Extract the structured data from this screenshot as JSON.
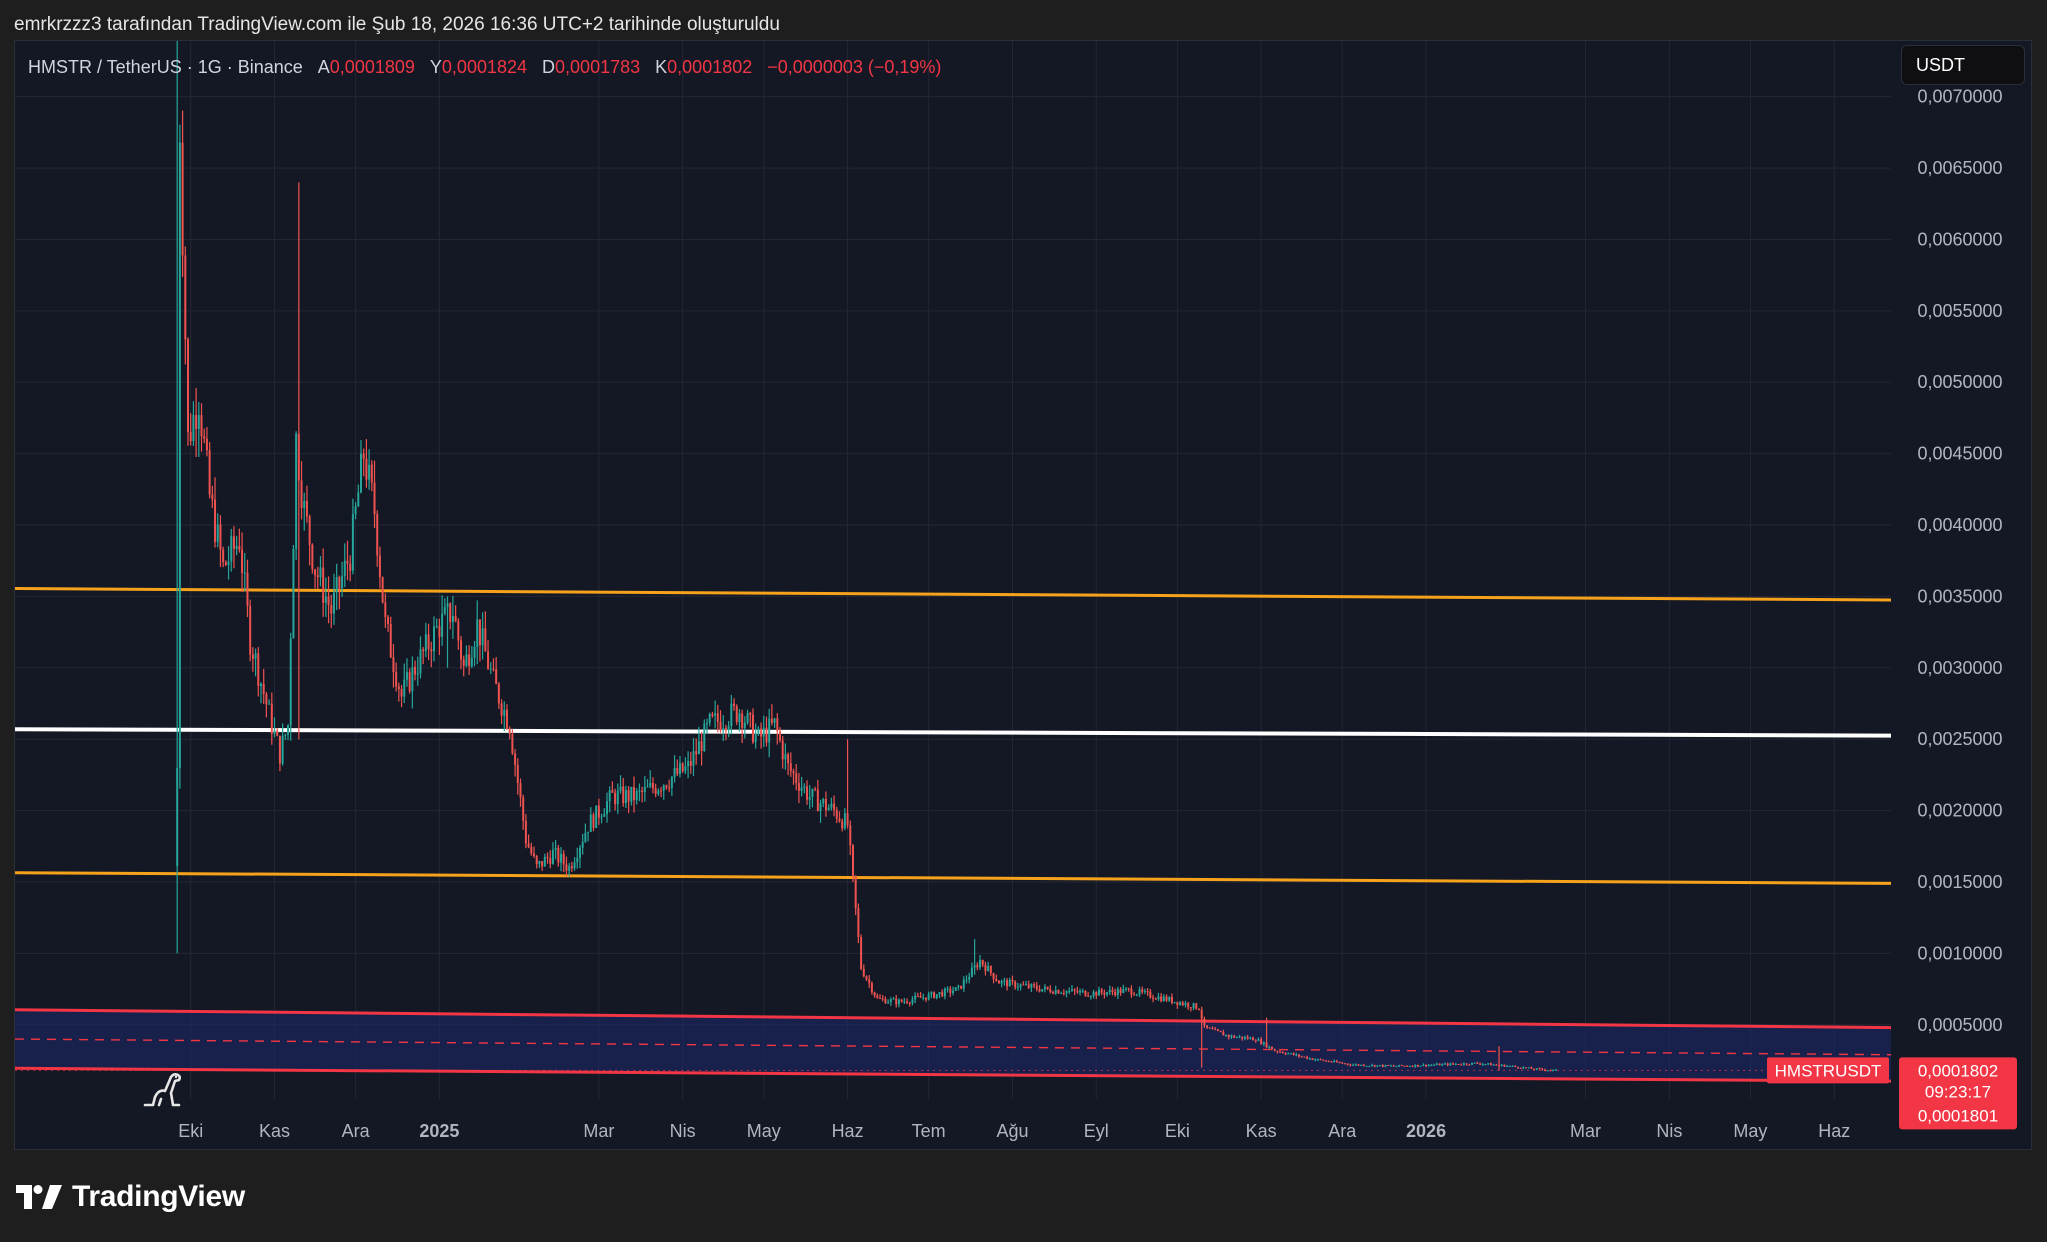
{
  "caption": "emrkrzzz3 tarafından TradingView.com ile Şub 18, 2026 16:36 UTC+2 tarihinde oluşturuldu",
  "legend": {
    "symbol": "HMSTR / TetherUS · 1G · Binance",
    "open_label": "A",
    "open_value": "0,0001809",
    "high_label": "Y",
    "high_value": "0,0001824",
    "low_label": "D",
    "low_value": "0,0001783",
    "close_label": "K",
    "close_value": "0,0001802",
    "change": "−0,0000003 (−0,19%)"
  },
  "currency_button": "USDT",
  "price_badges": {
    "symbol_tag": "HMSTRUSDT",
    "last_price": "0,0001802",
    "countdown": "09:23:17",
    "price_line": "0,0001801"
  },
  "brand": "TradingView",
  "colors": {
    "background": "#141824",
    "up": "#26a69a",
    "down": "#ef5350",
    "orange_lines": "#f7a21b",
    "white_line": "#ffffff",
    "red_channel": "#f23645",
    "channel_fill": "#1a2a6c"
  },
  "chart_data": {
    "type": "candlestick",
    "symbol": "HMSTR / TetherUS",
    "interval": "1G",
    "exchange": "Binance",
    "y_axis": {
      "ticks": [
        "0,0005000",
        "0,0010000",
        "0,0015000",
        "0,0020000",
        "0,0025000",
        "0,0030000",
        "0,0035000",
        "0,0040000",
        "0,0045000",
        "0,0050000",
        "0,0055000",
        "0,0060000",
        "0,0065000",
        "0,0070000"
      ],
      "tick_values": [
        0.0005,
        0.001,
        0.0015,
        0.002,
        0.0025,
        0.003,
        0.0035,
        0.004,
        0.0045,
        0.005,
        0.0055,
        0.006,
        0.0065,
        0.007
      ],
      "range": [
        -2e-05,
        0.00739
      ]
    },
    "x_axis": {
      "ticks": [
        "Eki",
        "Kas",
        "Ara",
        "2025",
        "Mar",
        "Nis",
        "May",
        "Haz",
        "Tem",
        "Ağu",
        "Eyl",
        "Eki",
        "Kas",
        "Ara",
        "2026",
        "Mar",
        "Nis",
        "May",
        "Haz"
      ],
      "tick_dates": [
        "2024-10-01",
        "2024-11-01",
        "2024-12-01",
        "2025-01-01",
        "2025-03-01",
        "2025-04-01",
        "2025-05-01",
        "2025-06-01",
        "2025-07-01",
        "2025-08-01",
        "2025-09-01",
        "2025-10-01",
        "2025-11-01",
        "2025-12-01",
        "2026-01-01",
        "2026-03-01",
        "2026-04-01",
        "2026-05-01",
        "2026-06-01"
      ],
      "bold_ticks": [
        "2025",
        "2026"
      ],
      "range": [
        "2024-07-28",
        "2026-06-22"
      ]
    },
    "price_anchors": [
      [
        "2024-09-26",
        0.0023
      ],
      [
        "2024-09-27",
        0.0068
      ],
      [
        "2024-09-30",
        0.0046
      ],
      [
        "2024-10-04",
        0.0049
      ],
      [
        "2024-10-08",
        0.0042
      ],
      [
        "2024-10-13",
        0.0037
      ],
      [
        "2024-10-19",
        0.0039
      ],
      [
        "2024-10-23",
        0.0032
      ],
      [
        "2024-10-27",
        0.0029
      ],
      [
        "2024-10-31",
        0.0026
      ],
      [
        "2024-11-03",
        0.0024
      ],
      [
        "2024-11-06",
        0.0026
      ],
      [
        "2024-11-09",
        0.0046
      ],
      [
        "2024-11-12",
        0.0041
      ],
      [
        "2024-11-16",
        0.0037
      ],
      [
        "2024-11-22",
        0.0034
      ],
      [
        "2024-11-29",
        0.0038
      ],
      [
        "2024-12-04",
        0.0045
      ],
      [
        "2024-12-08",
        0.0041
      ],
      [
        "2024-12-12",
        0.0033
      ],
      [
        "2024-12-18",
        0.0028
      ],
      [
        "2024-12-23",
        0.003
      ],
      [
        "2025-01-01",
        0.0033
      ],
      [
        "2025-01-06",
        0.0034
      ],
      [
        "2025-01-10",
        0.003
      ],
      [
        "2025-01-15",
        0.0033
      ],
      [
        "2025-01-21",
        0.0029
      ],
      [
        "2025-01-27",
        0.0026
      ],
      [
        "2025-02-02",
        0.0018
      ],
      [
        "2025-02-06",
        0.0016
      ],
      [
        "2025-02-12",
        0.0017
      ],
      [
        "2025-02-18",
        0.0016
      ],
      [
        "2025-02-25",
        0.0019
      ],
      [
        "2025-03-06",
        0.0021
      ],
      [
        "2025-03-15",
        0.0021
      ],
      [
        "2025-03-25",
        0.0022
      ],
      [
        "2025-04-03",
        0.0023
      ],
      [
        "2025-04-11",
        0.0026
      ],
      [
        "2025-04-22",
        0.0027
      ],
      [
        "2025-04-29",
        0.0025
      ],
      [
        "2025-05-05",
        0.0026
      ],
      [
        "2025-05-10",
        0.0023
      ],
      [
        "2025-05-18",
        0.0021
      ],
      [
        "2025-05-27",
        0.002
      ],
      [
        "2025-06-01",
        0.0019
      ],
      [
        "2025-06-06",
        0.0009
      ],
      [
        "2025-06-12",
        0.00068
      ],
      [
        "2025-06-20",
        0.00066
      ],
      [
        "2025-07-01",
        0.0007
      ],
      [
        "2025-07-12",
        0.00075
      ],
      [
        "2025-07-20",
        0.00095
      ],
      [
        "2025-07-27",
        0.0008
      ],
      [
        "2025-08-12",
        0.00075
      ],
      [
        "2025-08-30",
        0.00072
      ],
      [
        "2025-09-13",
        0.00074
      ],
      [
        "2025-09-27",
        0.00068
      ],
      [
        "2025-10-09",
        0.00062
      ],
      [
        "2025-10-11",
        0.00048
      ],
      [
        "2025-10-20",
        0.00042
      ],
      [
        "2025-10-30",
        0.0004
      ],
      [
        "2025-11-06",
        0.00032
      ],
      [
        "2025-11-20",
        0.00026
      ],
      [
        "2025-12-05",
        0.00022
      ],
      [
        "2025-12-20",
        0.00021
      ],
      [
        "2026-01-05",
        0.00022
      ],
      [
        "2026-01-20",
        0.00023
      ],
      [
        "2026-02-01",
        0.00021
      ],
      [
        "2026-02-10",
        0.00019
      ],
      [
        "2026-02-18",
        0.00018
      ]
    ],
    "wick_spikes": [
      [
        "2024-09-26",
        0.001,
        0.0074
      ],
      [
        "2024-11-10",
        0.0025,
        0.0064
      ],
      [
        "2025-01-04",
        0.003,
        0.0035
      ],
      [
        "2025-06-01",
        0.0019,
        0.0025
      ],
      [
        "2025-07-18",
        0.00085,
        0.0011
      ],
      [
        "2025-10-10",
        0.0002,
        0.0006
      ],
      [
        "2025-11-03",
        0.00035,
        0.00055
      ],
      [
        "2026-01-28",
        0.00018,
        0.00035
      ]
    ],
    "last_values": {
      "open": 0.0001809,
      "high": 0.0001824,
      "low": 0.0001783,
      "close": 0.0001802
    },
    "horizontal_lines": [
      {
        "name": "upper-orange",
        "color": "#f7a21b",
        "start": [
          "2024-07-28",
          0.003555
        ],
        "end": [
          "2026-06-22",
          0.003475
        ]
      },
      {
        "name": "white",
        "color": "#ffffff",
        "start": [
          "2024-07-28",
          0.00257
        ],
        "end": [
          "2026-06-22",
          0.002525
        ]
      },
      {
        "name": "lower-orange",
        "color": "#f7a21b",
        "start": [
          "2024-07-28",
          0.001565
        ],
        "end": [
          "2026-06-22",
          0.00149
        ]
      },
      {
        "name": "red-channel-top",
        "color": "#f23645",
        "start": [
          "2024-07-28",
          0.000605
        ],
        "end": [
          "2026-06-22",
          0.00048
        ]
      },
      {
        "name": "red-channel-bottom",
        "color": "#f23645",
        "start": [
          "2024-07-28",
          0.000195
        ],
        "end": [
          "2026-06-22",
          0.000105
        ]
      },
      {
        "name": "red-channel-mid",
        "color": "#f23645",
        "dashed": true,
        "start": [
          "2024-07-28",
          0.0004
        ],
        "end": [
          "2026-06-22",
          0.00029
        ]
      }
    ]
  }
}
